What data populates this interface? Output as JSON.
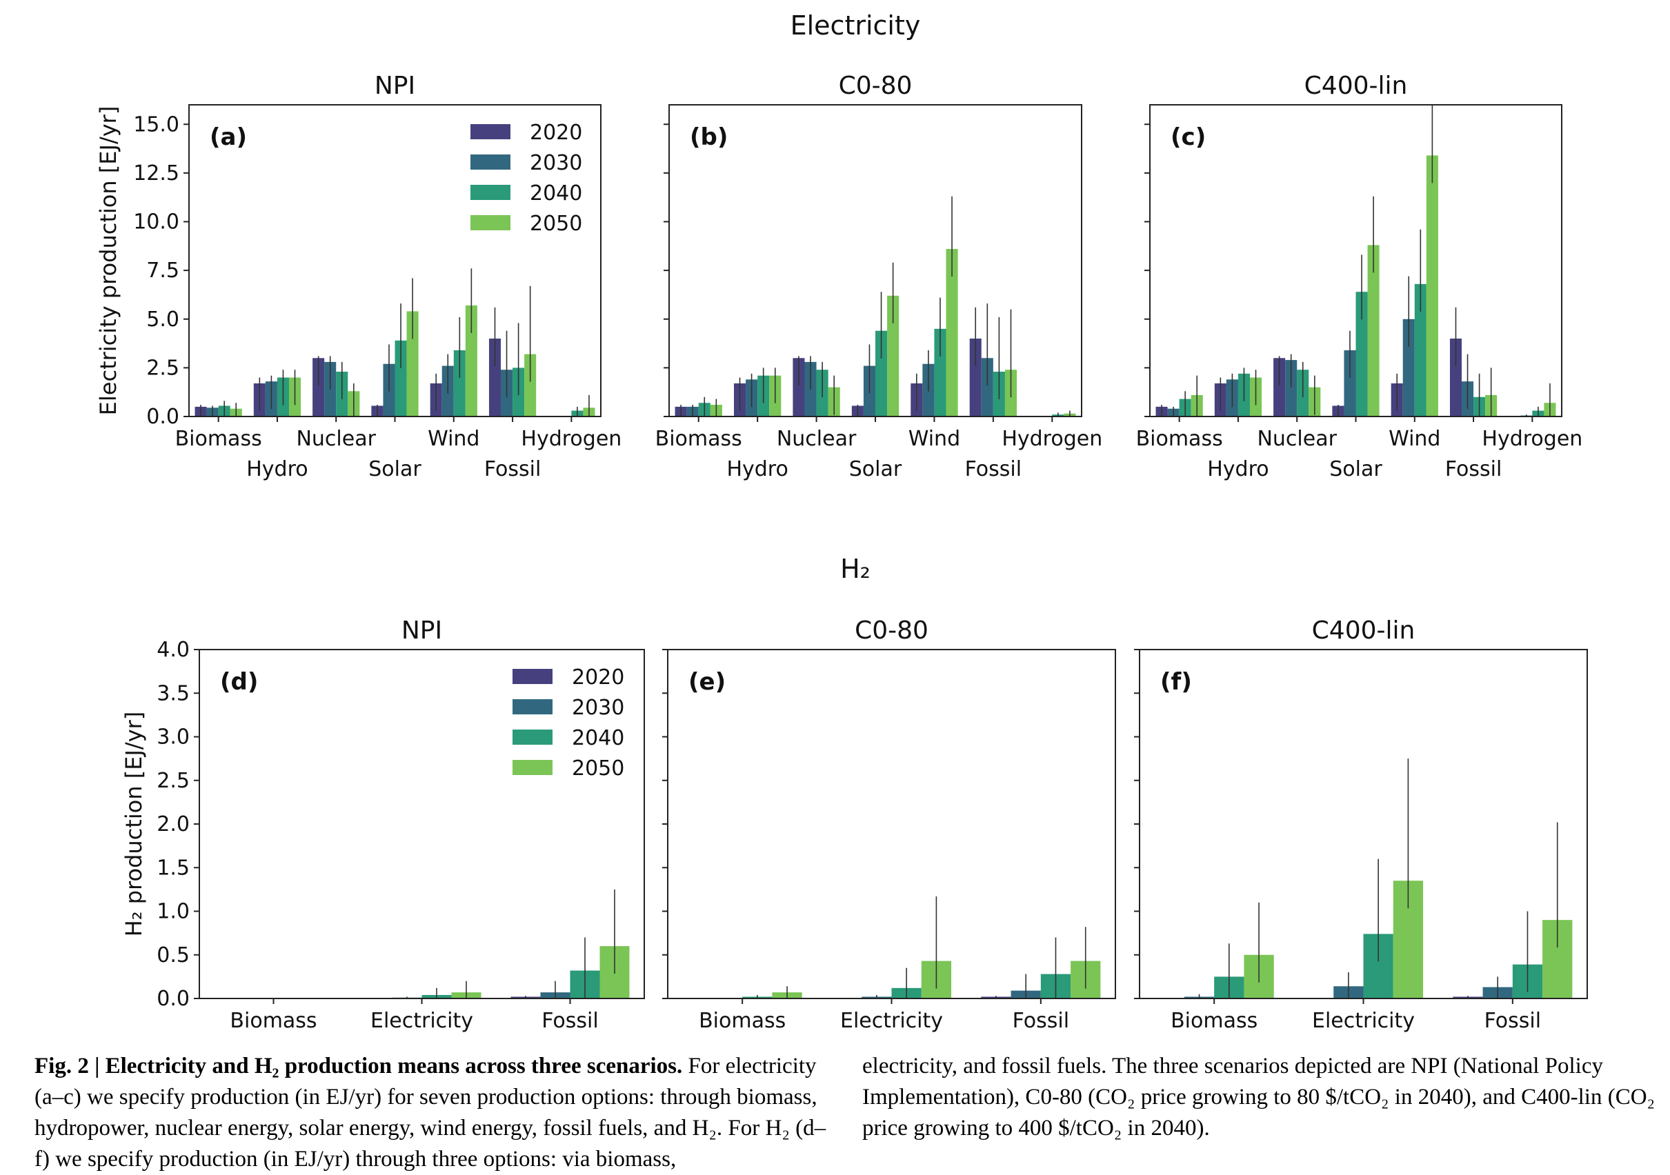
{
  "groups": {
    "electricity": {
      "title": "Electricity"
    },
    "h2": {
      "title": "H₂"
    }
  },
  "colors": {
    "2020": "#46417e",
    "2030": "#31687f",
    "2040": "#2a9a78",
    "2050": "#7ac555",
    "error_bar": "#333333"
  },
  "chart_data": [
    {
      "id": "a",
      "panel_label": "(a)",
      "title": "NPI",
      "type": "bar",
      "group": "electricity",
      "ylabel": "Electricity production [EJ/yr]",
      "ylim": [
        0,
        16
      ],
      "yticks": [
        0.0,
        2.5,
        5.0,
        7.5,
        10.0,
        12.5,
        15.0
      ],
      "ytick_labels": [
        "0.0",
        "2.5",
        "5.0",
        "7.5",
        "10.0",
        "12.5",
        "15.0"
      ],
      "categories": [
        "Biomass",
        "Hydro",
        "Nuclear",
        "Solar",
        "Wind",
        "Fossil",
        "Hydrogen"
      ],
      "legend": {
        "show": true,
        "placement": "top-right"
      },
      "series": [
        {
          "name": "2020",
          "values": [
            0.5,
            1.7,
            3.0,
            0.55,
            1.7,
            4.0,
            0.0
          ],
          "err_high": [
            0.6,
            2.0,
            3.1,
            0.6,
            2.2,
            5.6,
            0.0
          ]
        },
        {
          "name": "2030",
          "values": [
            0.45,
            1.8,
            2.8,
            2.7,
            2.6,
            2.4,
            0.0
          ],
          "err_high": [
            0.55,
            2.1,
            3.1,
            3.7,
            3.2,
            4.4,
            0.0
          ]
        },
        {
          "name": "2040",
          "values": [
            0.55,
            2.0,
            2.3,
            3.9,
            3.4,
            2.5,
            0.3
          ],
          "err_high": [
            0.8,
            2.4,
            2.8,
            5.8,
            5.1,
            4.8,
            0.5
          ]
        },
        {
          "name": "2050",
          "values": [
            0.4,
            2.0,
            1.3,
            5.4,
            5.7,
            3.2,
            0.45
          ],
          "err_high": [
            0.7,
            2.4,
            1.7,
            7.1,
            7.6,
            6.7,
            1.1
          ]
        }
      ]
    },
    {
      "id": "b",
      "panel_label": "(b)",
      "title": "C0-80",
      "type": "bar",
      "group": "electricity",
      "ylim": [
        0,
        16
      ],
      "categories": [
        "Biomass",
        "Hydro",
        "Nuclear",
        "Solar",
        "Wind",
        "Fossil",
        "Hydrogen"
      ],
      "legend": {
        "show": false
      },
      "series": [
        {
          "name": "2020",
          "values": [
            0.5,
            1.7,
            3.0,
            0.55,
            1.7,
            4.0,
            0.0
          ],
          "err_high": [
            0.6,
            2.0,
            3.1,
            0.6,
            2.2,
            5.6,
            0.0
          ]
        },
        {
          "name": "2030",
          "values": [
            0.5,
            1.9,
            2.8,
            2.6,
            2.7,
            3.0,
            0.0
          ],
          "err_high": [
            0.6,
            2.2,
            3.1,
            3.7,
            3.4,
            5.8,
            0.0
          ]
        },
        {
          "name": "2040",
          "values": [
            0.7,
            2.1,
            2.4,
            4.4,
            4.5,
            2.3,
            0.1
          ],
          "err_high": [
            1.0,
            2.5,
            2.8,
            6.4,
            6.1,
            5.1,
            0.2
          ]
        },
        {
          "name": "2050",
          "values": [
            0.6,
            2.1,
            1.5,
            6.2,
            8.6,
            2.4,
            0.15
          ],
          "err_high": [
            0.9,
            2.5,
            2.1,
            7.9,
            11.3,
            5.5,
            0.3
          ]
        }
      ]
    },
    {
      "id": "c",
      "panel_label": "(c)",
      "title": "C400-lin",
      "type": "bar",
      "group": "electricity",
      "ylim": [
        0,
        16
      ],
      "categories": [
        "Biomass",
        "Hydro",
        "Nuclear",
        "Solar",
        "Wind",
        "Fossil",
        "Hydrogen"
      ],
      "legend": {
        "show": false
      },
      "series": [
        {
          "name": "2020",
          "values": [
            0.5,
            1.7,
            3.0,
            0.55,
            1.7,
            4.0,
            0.0
          ],
          "err_high": [
            0.6,
            2.0,
            3.1,
            0.6,
            2.2,
            5.6,
            0.0
          ]
        },
        {
          "name": "2030",
          "values": [
            0.4,
            1.9,
            2.9,
            3.4,
            5.0,
            1.8,
            0.05
          ],
          "err_high": [
            0.5,
            2.2,
            3.2,
            4.4,
            7.2,
            3.2,
            0.1
          ]
        },
        {
          "name": "2040",
          "values": [
            0.9,
            2.2,
            2.4,
            6.4,
            6.8,
            1.0,
            0.3
          ],
          "err_high": [
            1.3,
            2.5,
            2.8,
            8.3,
            9.6,
            2.2,
            0.5
          ]
        },
        {
          "name": "2050",
          "values": [
            1.1,
            2.0,
            1.5,
            8.8,
            13.4,
            1.1,
            0.7
          ],
          "err_high": [
            2.1,
            2.4,
            2.1,
            11.3,
            16.0,
            2.5,
            1.7
          ]
        }
      ]
    },
    {
      "id": "d",
      "panel_label": "(d)",
      "title": "NPI",
      "type": "bar",
      "group": "h2",
      "ylabel": "H₂ production [EJ/yr]",
      "ylim": [
        0,
        4.0
      ],
      "yticks": [
        0.0,
        0.5,
        1.0,
        1.5,
        2.0,
        2.5,
        3.0,
        3.5,
        4.0
      ],
      "ytick_labels": [
        "0.0",
        "0.5",
        "1.0",
        "1.5",
        "2.0",
        "2.5",
        "3.0",
        "3.5",
        "4.0"
      ],
      "categories": [
        "Biomass",
        "Electricity",
        "Fossil"
      ],
      "legend": {
        "show": true,
        "placement": "top-right"
      },
      "series": [
        {
          "name": "2020",
          "values": [
            0.0,
            0.0,
            0.02
          ],
          "err_high": [
            0.0,
            0.0,
            0.03
          ]
        },
        {
          "name": "2030",
          "values": [
            0.0,
            0.01,
            0.07
          ],
          "err_high": [
            0.0,
            0.02,
            0.2
          ]
        },
        {
          "name": "2040",
          "values": [
            0.0,
            0.04,
            0.32
          ],
          "err_high": [
            0.0,
            0.12,
            0.7
          ]
        },
        {
          "name": "2050",
          "values": [
            0.0,
            0.07,
            0.6
          ],
          "err_high": [
            0.0,
            0.2,
            1.25
          ]
        }
      ]
    },
    {
      "id": "e",
      "panel_label": "(e)",
      "title": "C0-80",
      "type": "bar",
      "group": "h2",
      "ylim": [
        0,
        4.0
      ],
      "categories": [
        "Biomass",
        "Electricity",
        "Fossil"
      ],
      "legend": {
        "show": false
      },
      "series": [
        {
          "name": "2020",
          "values": [
            0.0,
            0.0,
            0.02
          ],
          "err_high": [
            0.0,
            0.0,
            0.03
          ]
        },
        {
          "name": "2030",
          "values": [
            0.0,
            0.02,
            0.09
          ],
          "err_high": [
            0.0,
            0.04,
            0.28
          ]
        },
        {
          "name": "2040",
          "values": [
            0.02,
            0.12,
            0.28
          ],
          "err_high": [
            0.04,
            0.35,
            0.7
          ]
        },
        {
          "name": "2050",
          "values": [
            0.07,
            0.43,
            0.43
          ],
          "err_high": [
            0.14,
            1.17,
            0.82
          ]
        }
      ]
    },
    {
      "id": "f",
      "panel_label": "(f)",
      "title": "C400-lin",
      "type": "bar",
      "group": "h2",
      "ylim": [
        0,
        4.0
      ],
      "categories": [
        "Biomass",
        "Electricity",
        "Fossil"
      ],
      "legend": {
        "show": false
      },
      "series": [
        {
          "name": "2020",
          "values": [
            0.0,
            0.0,
            0.02
          ],
          "err_high": [
            0.0,
            0.0,
            0.03
          ]
        },
        {
          "name": "2030",
          "values": [
            0.02,
            0.14,
            0.13
          ],
          "err_high": [
            0.05,
            0.3,
            0.25
          ]
        },
        {
          "name": "2040",
          "values": [
            0.25,
            0.74,
            0.39
          ],
          "err_high": [
            0.63,
            1.6,
            1.0
          ]
        },
        {
          "name": "2050",
          "values": [
            0.5,
            1.35,
            0.9
          ],
          "err_high": [
            1.1,
            2.75,
            2.02
          ]
        }
      ]
    }
  ],
  "caption": {
    "label": "Fig. 2 |",
    "title": "Electricity and H₂ production means across three scenarios.",
    "left_text": "For electricity (a–c) we specify production (in EJ/yr) for seven production options: through biomass, hydropower, nuclear energy, solar energy, wind energy, fossil fuels, and H₂. For H₂ (d–f) we specify production (in EJ/yr) through three options: via biomass,",
    "right_text": "electricity, and fossil fuels. The three scenarios depicted are NPI (National Policy Implementation), C0-80 (CO₂ price growing to 80 $/tCO₂ in 2040), and C400-lin (CO₂ price growing to 400 $/tCO₂ in 2040)."
  }
}
